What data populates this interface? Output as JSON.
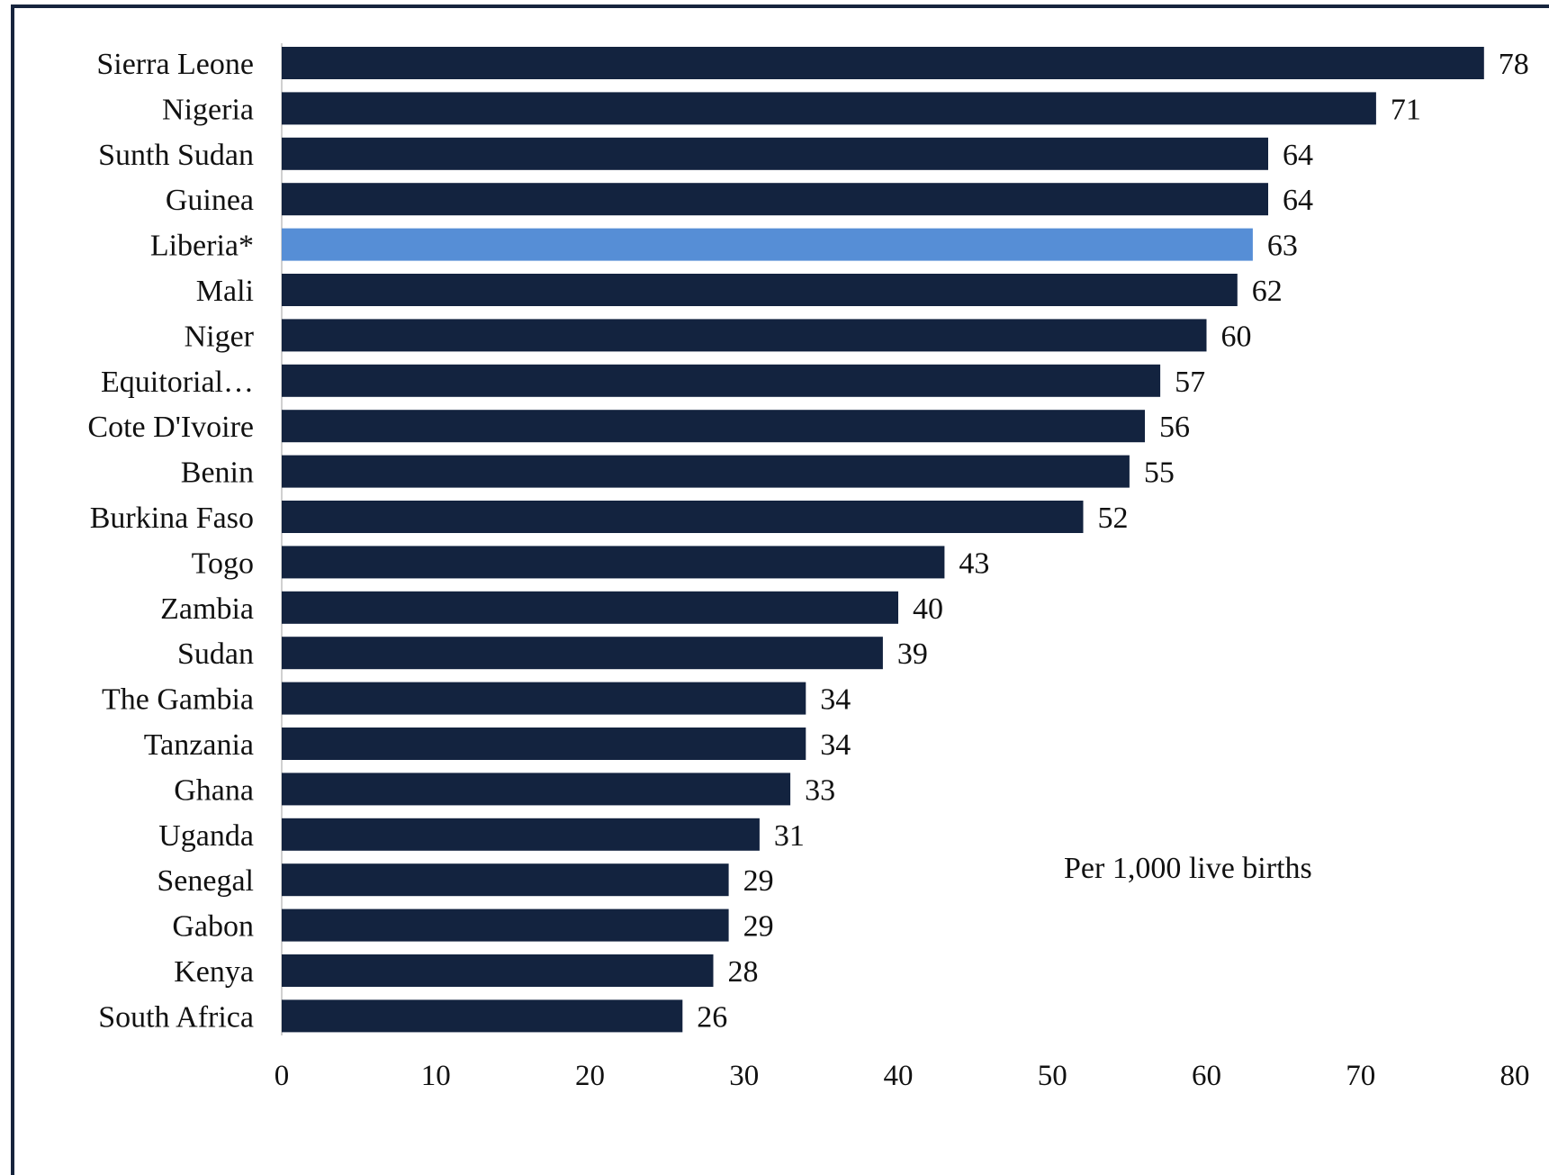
{
  "chart_data": {
    "type": "bar",
    "orientation": "horizontal",
    "categories": [
      "Sierra Leone",
      "Nigeria",
      "Sunth Sudan",
      "Guinea",
      "Liberia*",
      "Mali",
      "Niger",
      "Equitorial…",
      "Cote D'Ivoire",
      "Benin",
      "Burkina Faso",
      "Togo",
      "Zambia",
      "Sudan",
      "The Gambia",
      "Tanzania",
      "Ghana",
      "Uganda",
      "Senegal",
      "Gabon",
      "Kenya",
      "South Africa"
    ],
    "values": [
      78,
      71,
      64,
      64,
      63,
      62,
      60,
      57,
      56,
      55,
      52,
      43,
      40,
      39,
      34,
      34,
      33,
      31,
      29,
      29,
      28,
      26
    ],
    "value_labels": [
      "78",
      "71",
      "64",
      "64",
      "63",
      "62",
      "60",
      "57",
      "56",
      "55",
      "52",
      "43",
      "40",
      "39",
      "34",
      "34",
      "33",
      "31",
      "29",
      "29",
      "28",
      "26"
    ],
    "xlim": [
      0,
      80
    ],
    "x_ticks": [
      0,
      10,
      20,
      30,
      40,
      50,
      60,
      70,
      80
    ],
    "x_tick_labels": [
      "0",
      "10",
      "20",
      "30",
      "40",
      "50",
      "60",
      "70",
      "80"
    ],
    "annotation": "Per 1,000 live births",
    "highlight_category": "Liberia*",
    "colors": {
      "bar": "#13233f",
      "highlight": "#568ed6",
      "axis": "#d0d0d0",
      "frame": "#16243d",
      "text": "#111111"
    },
    "grid": false,
    "legend": "none"
  }
}
